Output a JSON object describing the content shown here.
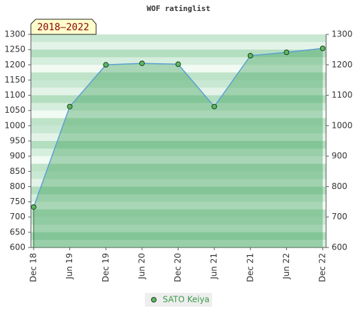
{
  "chart_data": {
    "type": "line",
    "title": "WOF ratinglist",
    "annotation": "2018–2022",
    "categories": [
      "Dec 18",
      "Jun 19",
      "Dec 19",
      "Jun 20",
      "Dec 20",
      "Jun 21",
      "Dec 21",
      "Jun 22",
      "Dec 22"
    ],
    "series": [
      {
        "name": "SATO Keiya",
        "color": "#5a9fd4",
        "marker_color": "#5cb860",
        "values": [
          733,
          1063,
          1200,
          1205,
          1202,
          1063,
          1230,
          1241,
          1254
        ]
      }
    ],
    "ylim": [
      600,
      1300
    ],
    "yticks": [
      600,
      650,
      700,
      750,
      800,
      850,
      900,
      950,
      1000,
      1050,
      1100,
      1150,
      1200,
      1250,
      1300
    ],
    "y2lim": [
      600,
      1300
    ],
    "y2ticks": [
      600,
      700,
      800,
      900,
      1000,
      1100,
      1200,
      1300
    ],
    "legend": "bottom"
  }
}
